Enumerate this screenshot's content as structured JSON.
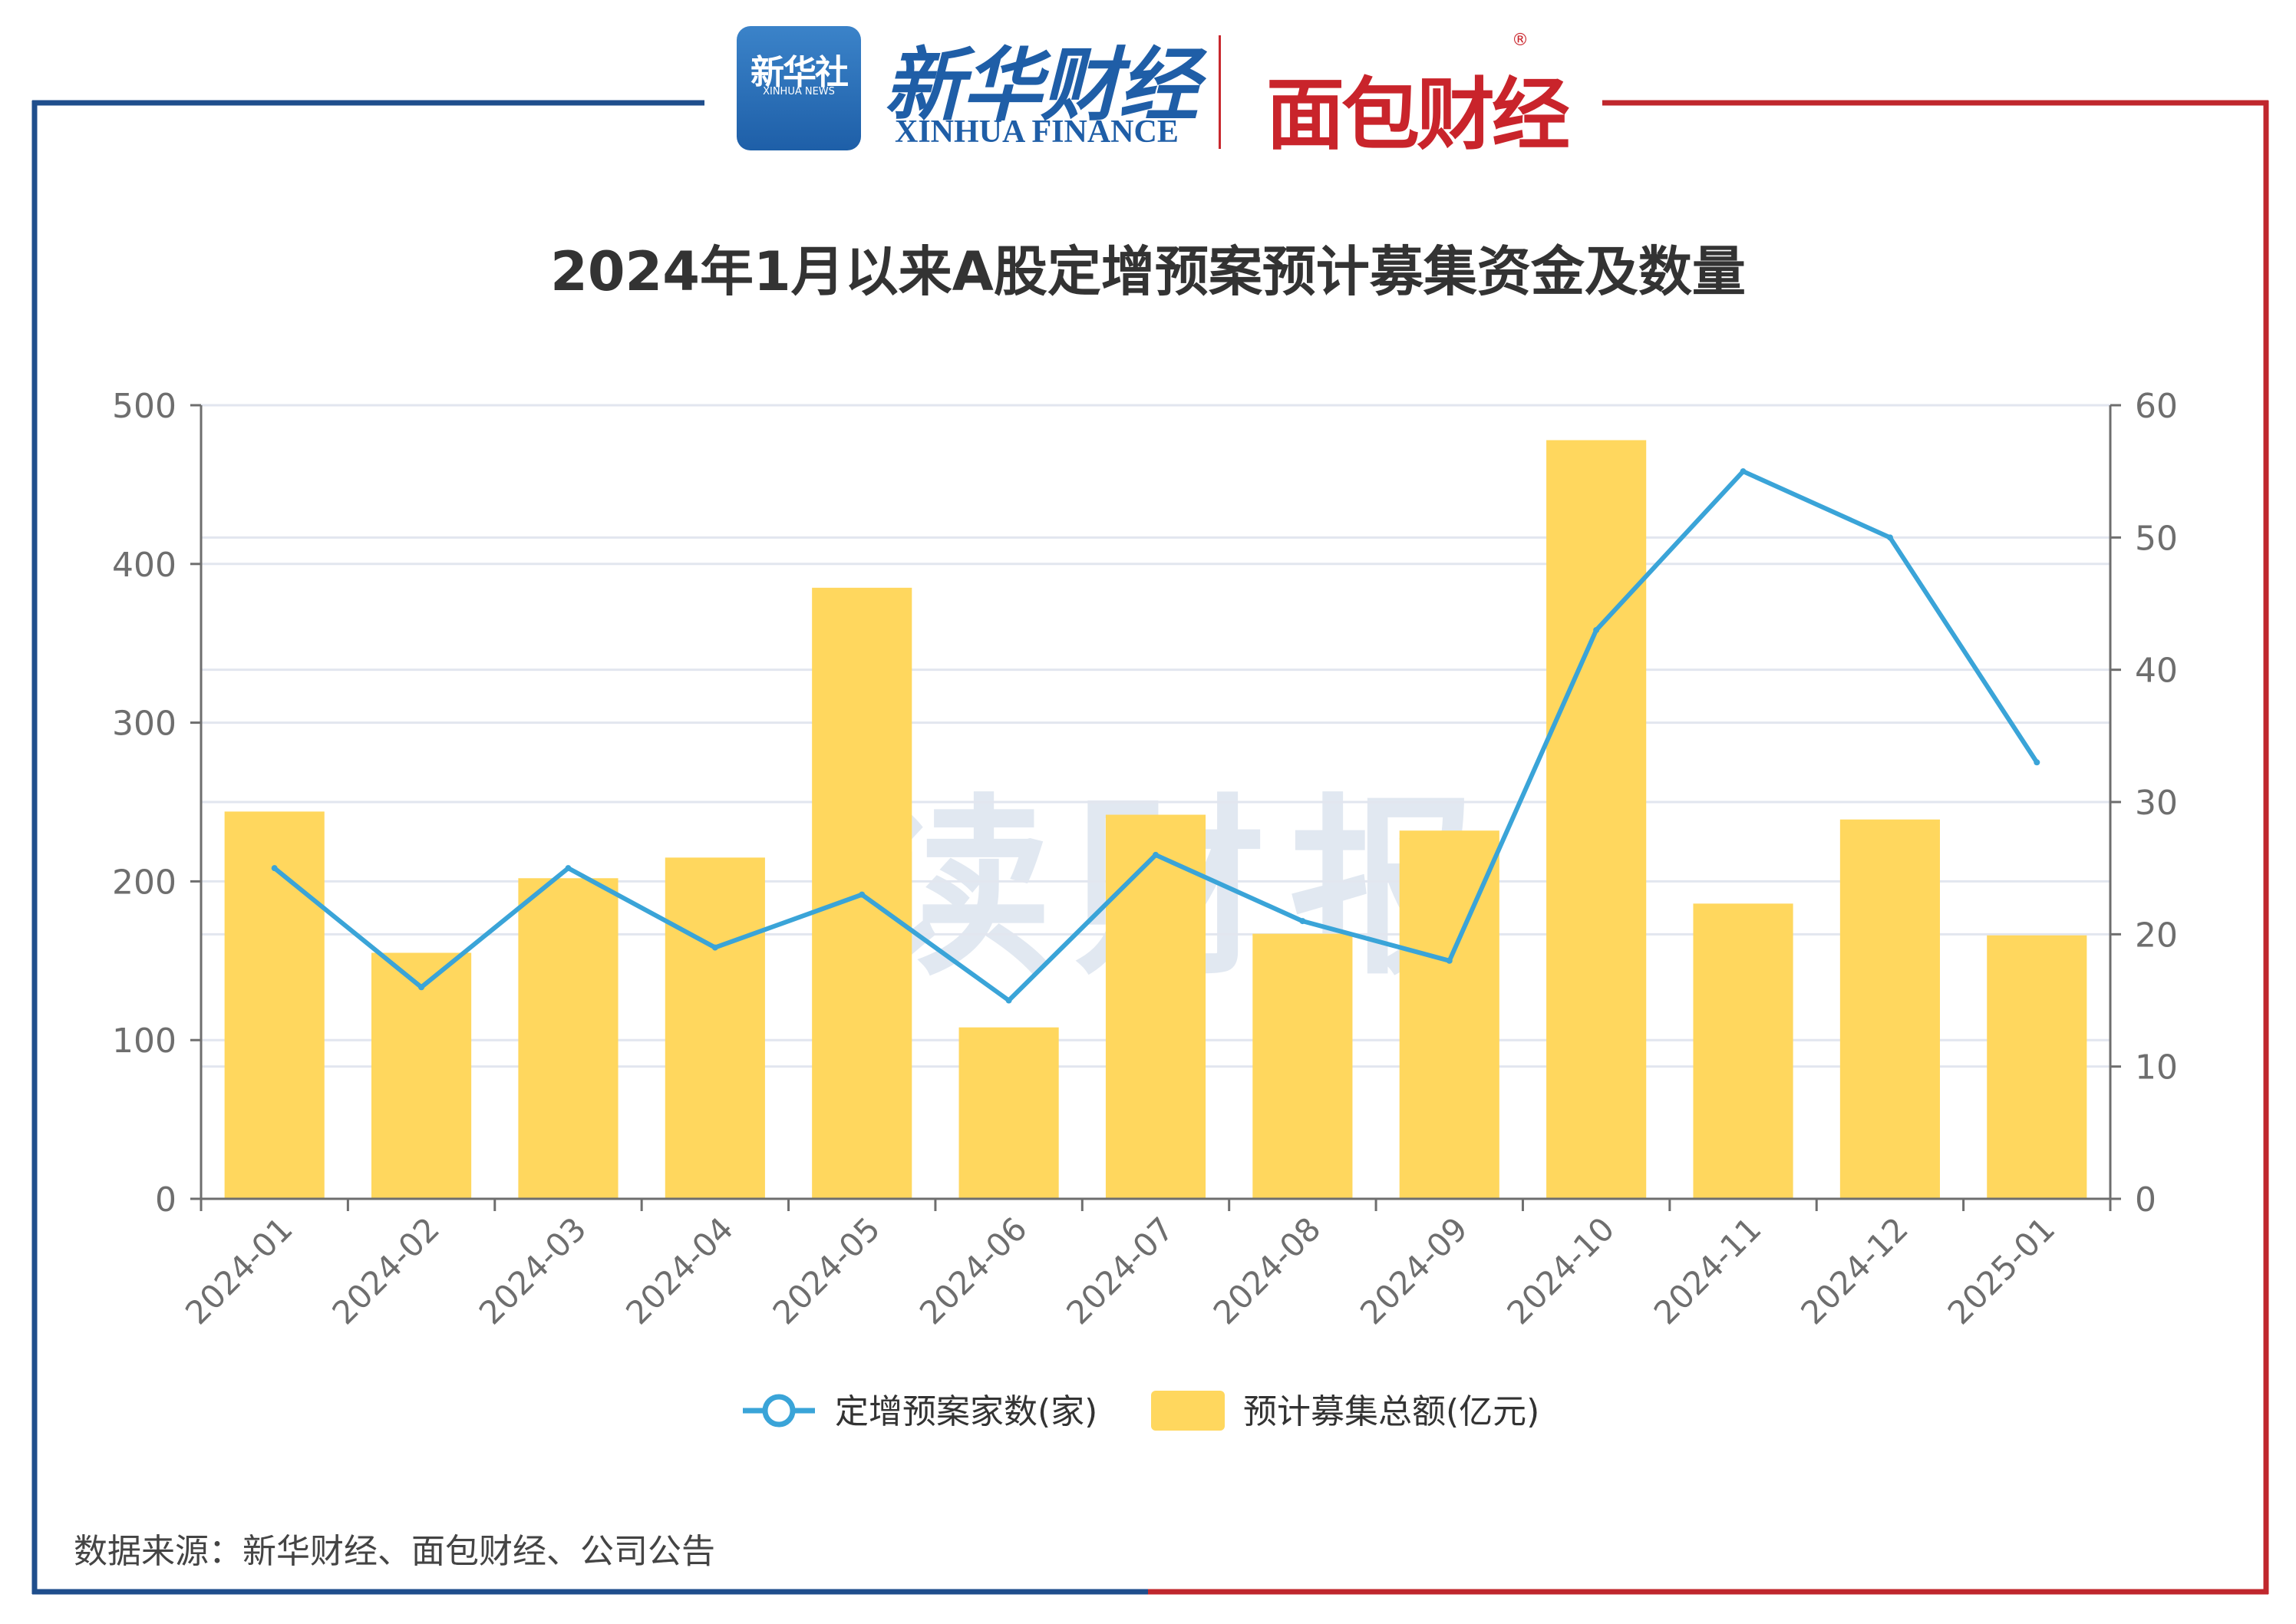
{
  "header": {
    "xinhua_badge_cn": "新华社",
    "xinhua_badge_en": "XINHUA NEWS",
    "xinhua_finance_cn": "新华财经",
    "xinhua_finance_en": "XINHUA FINANCE",
    "mianbao_logo": "面包财经",
    "registered_mark": "®"
  },
  "watermark": "读财报",
  "source": "数据来源：新华财经、面包财经、公司公告",
  "colors": {
    "frame_left": "#1f4e8c",
    "frame_right": "#c0272d",
    "bar": "#ffd75e",
    "line": "#3aa4d8",
    "grid": "#e2e6ef",
    "axis": "#6e6e6e",
    "title": "#333333"
  },
  "chart_data": {
    "type": "bar",
    "title": "2024年1月以来A股定增预案预计募集资金及数量",
    "categories": [
      "2024-01",
      "2024-02",
      "2024-03",
      "2024-04",
      "2024-05",
      "2024-06",
      "2024-07",
      "2024-08",
      "2024-09",
      "2024-10",
      "2024-11",
      "2024-12",
      "2025-01"
    ],
    "series": [
      {
        "name": "定增预案家数(家)",
        "type": "line",
        "axis": "right",
        "values": [
          25,
          16,
          25,
          19,
          23,
          15,
          26,
          21,
          18,
          43,
          55,
          50,
          33
        ]
      },
      {
        "name": "预计募集总额(亿元)",
        "type": "bar",
        "axis": "left",
        "values": [
          244,
          155,
          202,
          215,
          385,
          108,
          242,
          167,
          232,
          478,
          186,
          239,
          166
        ]
      }
    ],
    "y_left": {
      "min": 0,
      "max": 500,
      "ticks": [
        0,
        100,
        200,
        300,
        400,
        500
      ]
    },
    "y_right": {
      "min": 0,
      "max": 60,
      "ticks": [
        0,
        10,
        20,
        30,
        40,
        50,
        60
      ]
    },
    "grid": true,
    "legend_position": "bottom"
  }
}
